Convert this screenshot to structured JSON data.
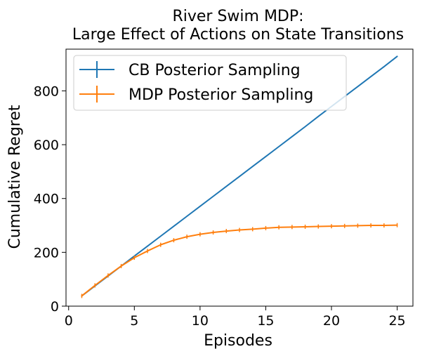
{
  "chart_data": {
    "type": "line",
    "title_lines": [
      "River Swim MDP:",
      "Large Effect of Actions on State Transitions"
    ],
    "xlabel": "Episodes",
    "ylabel": "Cumulative Regret",
    "xlim": [
      -0.2,
      26.2
    ],
    "ylim": [
      0,
      955
    ],
    "xticks": [
      0,
      5,
      10,
      15,
      20,
      25
    ],
    "yticks": [
      0,
      200,
      400,
      600,
      800
    ],
    "legend_position": "top-left",
    "x": [
      1,
      2,
      3,
      4,
      5,
      6,
      7,
      8,
      9,
      10,
      11,
      12,
      13,
      14,
      15,
      16,
      17,
      18,
      19,
      20,
      21,
      22,
      23,
      24,
      25
    ],
    "series": [
      {
        "name": "CB Posterior Sampling",
        "color": "#1f77b4",
        "error_bars": false,
        "values": [
          38,
          75,
          112,
          149,
          186,
          223,
          260,
          297,
          334,
          371,
          408,
          445,
          482,
          519,
          556,
          593,
          630,
          667,
          705,
          742,
          779,
          816,
          853,
          890,
          928
        ]
      },
      {
        "name": "MDP Posterior Sampling",
        "color": "#ff7f0e",
        "error_bars": true,
        "values": [
          38,
          77,
          114,
          149,
          180,
          205,
          228,
          245,
          258,
          267,
          274,
          279,
          283,
          286,
          290,
          293,
          294,
          295,
          296,
          297,
          298,
          299,
          300,
          300,
          301
        ]
      }
    ]
  }
}
